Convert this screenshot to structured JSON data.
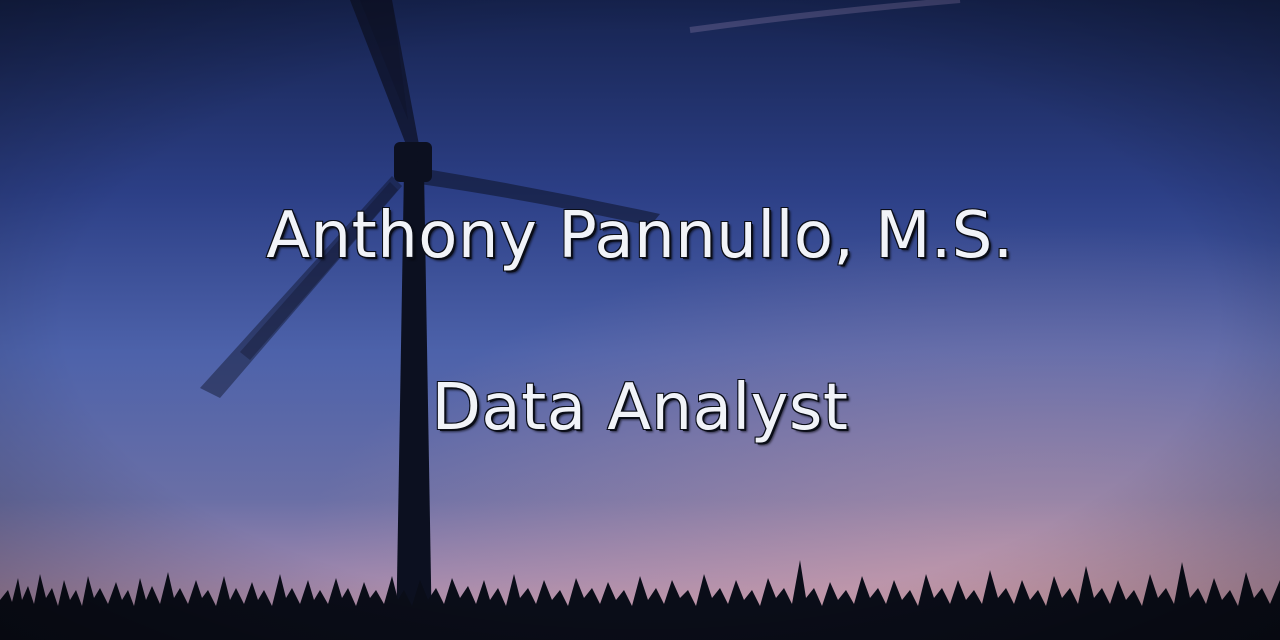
{
  "hero": {
    "name": "Anthony Pannullo, M.S.",
    "role": "Data Analyst"
  },
  "scene": {
    "description_icon": "wind-turbine-silhouette",
    "colors": {
      "sky_top": "#1c2a5e",
      "sky_mid": "#4a5fa8",
      "sky_horizon": "#b48aa6",
      "silhouette": "#0a0d18",
      "text_fill": "#f1f3f8",
      "text_outline": "#0a0d18"
    }
  }
}
